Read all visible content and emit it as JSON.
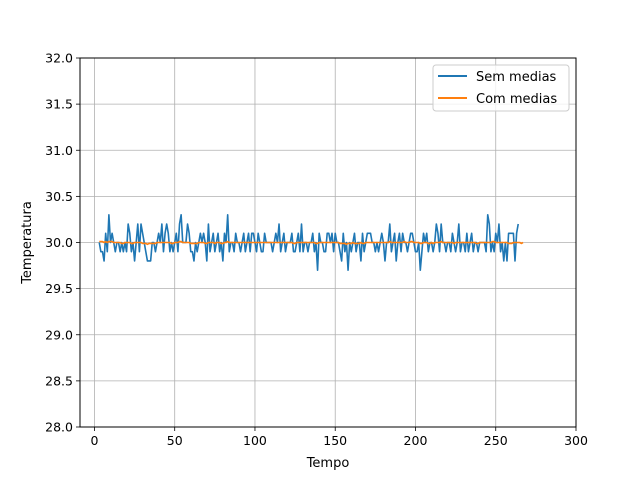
{
  "chart_data": {
    "type": "line",
    "xlabel": "Tempo",
    "ylabel": "Temperatura",
    "xlim": [
      -9,
      300
    ],
    "ylim": [
      28.0,
      32.0
    ],
    "xticks": [
      0,
      50,
      100,
      150,
      200,
      250,
      300
    ],
    "yticks": [
      28.0,
      28.5,
      29.0,
      29.5,
      30.0,
      30.5,
      31.0,
      31.5,
      32.0
    ],
    "xtick_labels": [
      "0",
      "50",
      "100",
      "150",
      "200",
      "250",
      "300"
    ],
    "ytick_labels": [
      "28.0",
      "28.5",
      "29.0",
      "29.5",
      "30.0",
      "30.5",
      "31.0",
      "31.5",
      "32.0"
    ],
    "grid": true,
    "legend_position": "top-right",
    "series": [
      {
        "name": "Sem medias",
        "color": "#1f77b4",
        "x_start": 3,
        "x_step": 1,
        "values": [
          30.0,
          29.9,
          29.9,
          29.8,
          30.1,
          29.9,
          30.3,
          30.0,
          30.1,
          30.0,
          29.9,
          30.0,
          30.0,
          29.9,
          30.0,
          29.9,
          30.0,
          29.9,
          30.2,
          30.1,
          29.9,
          30.0,
          29.8,
          30.0,
          30.2,
          29.9,
          30.2,
          30.1,
          30.0,
          29.9,
          29.8,
          29.8,
          29.8,
          30.0,
          30.0,
          29.9,
          30.0,
          30.1,
          30.0,
          30.2,
          29.9,
          30.1,
          30.2,
          30.1,
          29.9,
          30.0,
          29.9,
          30.0,
          30.1,
          29.9,
          30.2,
          30.3,
          30.0,
          30.0,
          30.0,
          30.2,
          30.1,
          29.9,
          29.9,
          29.8,
          30.0,
          29.9,
          30.0,
          30.1,
          30.0,
          30.1,
          30.0,
          29.8,
          30.2,
          29.9,
          30.0,
          30.1,
          29.9,
          30.0,
          30.1,
          29.9,
          30.0,
          29.8,
          30.1,
          30.0,
          30.3,
          29.9,
          30.0,
          30.0,
          29.9,
          30.1,
          30.0,
          30.0,
          29.9,
          30.0,
          30.1,
          29.9,
          30.0,
          30.1,
          29.9,
          30.1,
          30.1,
          30.0,
          29.9,
          30.1,
          30.0,
          29.9,
          29.9,
          30.1,
          30.0,
          30.0,
          30.0,
          30.0,
          29.9,
          30.0,
          30.1,
          30.0,
          30.2,
          29.9,
          30.0,
          30.1,
          29.9,
          30.0,
          30.0,
          30.0,
          30.1,
          29.9,
          29.9,
          30.0,
          30.1,
          29.9,
          30.2,
          29.9,
          30.0,
          30.0,
          29.9,
          30.0,
          30.0,
          30.1,
          29.9,
          30.0,
          29.7,
          30.1,
          30.0,
          30.0,
          29.9,
          29.9,
          30.1,
          30.1,
          30.0,
          30.1,
          29.9,
          30.1,
          30.0,
          30.0,
          29.9,
          29.8,
          30.1,
          29.9,
          30.0,
          29.7,
          30.0,
          29.9,
          30.0,
          30.1,
          29.9,
          30.0,
          30.0,
          29.8,
          30.1,
          29.9,
          30.0,
          30.1,
          30.1,
          30.1,
          30.0,
          30.0,
          29.9,
          30.0,
          29.9,
          30.0,
          30.1,
          30.0,
          29.8,
          30.0,
          30.0,
          30.2,
          29.9,
          30.0,
          30.1,
          29.8,
          30.0,
          30.1,
          29.9,
          30.1,
          30.0,
          30.0,
          29.9,
          30.0,
          30.1,
          30.1,
          30.0,
          29.9,
          29.9,
          30.0,
          29.7,
          29.9,
          30.1,
          30.0,
          30.1,
          29.9,
          30.0,
          30.0,
          29.9,
          30.0,
          30.2,
          30.1,
          29.9,
          30.2,
          30.0,
          30.0,
          29.9,
          30.0,
          30.0,
          29.9,
          30.1,
          30.0,
          29.9,
          30.0,
          30.2,
          29.9,
          30.0,
          30.0,
          29.9,
          30.1,
          29.9,
          30.0,
          30.1,
          29.9,
          30.0,
          30.0,
          29.9,
          30.0,
          30.0,
          30.0,
          30.0,
          29.9,
          30.3,
          30.2,
          29.9,
          30.0,
          29.9,
          30.1,
          30.0,
          30.2,
          29.9,
          30.0,
          29.8,
          30.0,
          29.8,
          30.1,
          30.1,
          30.1,
          30.1,
          29.8,
          30.1,
          30.2
        ]
      },
      {
        "name": "Com medias",
        "color": "#ff7f0e",
        "x_start": 3,
        "x_step": 1,
        "values": [
          30.01,
          30.01,
          30.01,
          30.0,
          30.01,
          30.0,
          30.01,
          30.01,
          30.01,
          30.0,
          30.0,
          30.0,
          30.0,
          30.0,
          29.99,
          29.99,
          30.0,
          30.0,
          30.0,
          30.0,
          29.99,
          29.99,
          30.0,
          30.0,
          30.0,
          30.0,
          30.0,
          29.99,
          29.99,
          29.99,
          29.98,
          29.99,
          29.99,
          29.99,
          29.99,
          29.99,
          30.0,
          30.0,
          30.0,
          30.0,
          30.0,
          30.0,
          30.0,
          30.0,
          30.0,
          29.99,
          29.99,
          30.0,
          30.0,
          30.0,
          30.01,
          30.01,
          30.0,
          30.0,
          30.0,
          30.0,
          30.0,
          29.99,
          29.99,
          29.99,
          29.99,
          29.99,
          30.0,
          30.0,
          30.0,
          30.0,
          29.99,
          29.99,
          30.0,
          30.0,
          30.0,
          30.0,
          29.99,
          30.0,
          30.0,
          30.0,
          29.99,
          29.99,
          30.0,
          30.0,
          30.01,
          30.0,
          30.0,
          30.0,
          30.0,
          30.0,
          30.0,
          30.0,
          30.0,
          30.0,
          30.0,
          30.0,
          30.0,
          30.0,
          30.0,
          30.0,
          30.0,
          30.0,
          30.0,
          30.0,
          30.0,
          30.0,
          30.0,
          30.0,
          30.0,
          30.0,
          30.0,
          30.0,
          30.0,
          30.0,
          30.0,
          30.0,
          30.0,
          30.0,
          30.0,
          30.0,
          30.0,
          30.0,
          30.0,
          30.0,
          30.0,
          29.99,
          29.99,
          30.0,
          30.0,
          30.0,
          30.0,
          30.0,
          30.0,
          30.0,
          30.0,
          30.0,
          30.0,
          30.0,
          30.0,
          29.99,
          29.99,
          30.0,
          30.0,
          30.0,
          30.0,
          30.0,
          30.0,
          30.0,
          30.0,
          30.0,
          30.0,
          30.0,
          30.0,
          30.0,
          29.99,
          29.99,
          29.99,
          29.99,
          29.98,
          29.99,
          29.99,
          29.99,
          30.0,
          29.99,
          29.99,
          29.99,
          29.99,
          30.0,
          29.99,
          29.99,
          30.0,
          30.0,
          30.0,
          30.0,
          30.0,
          30.0,
          30.0,
          30.0,
          30.0,
          30.0,
          30.0,
          30.0,
          30.0,
          30.0,
          30.0,
          30.01,
          30.0,
          30.0,
          30.0,
          30.0,
          30.0,
          30.0,
          30.0,
          30.0,
          30.01,
          30.0,
          30.0,
          30.0,
          30.01,
          30.01,
          30.0,
          30.0,
          30.0,
          30.0,
          29.99,
          29.99,
          30.0,
          30.0,
          30.0,
          29.99,
          29.99,
          30.0,
          29.99,
          30.0,
          30.0,
          30.0,
          30.0,
          30.01,
          30.0,
          30.0,
          30.0,
          30.0,
          30.0,
          30.0,
          30.0,
          29.99,
          30.0,
          30.0,
          30.0,
          30.0,
          30.0,
          30.0,
          30.0,
          30.0,
          30.0,
          30.0,
          30.0,
          30.0,
          30.0,
          29.99,
          29.99,
          30.0,
          30.0,
          30.0,
          30.0,
          30.0,
          30.0,
          30.0,
          30.0,
          30.01,
          30.01,
          30.0,
          30.0,
          30.0,
          30.0,
          30.0,
          30.0,
          30.0,
          30.0,
          29.99,
          29.99,
          29.99,
          30.0,
          30.0,
          30.0,
          30.0,
          30.0,
          29.99,
          30.0
        ]
      }
    ]
  }
}
